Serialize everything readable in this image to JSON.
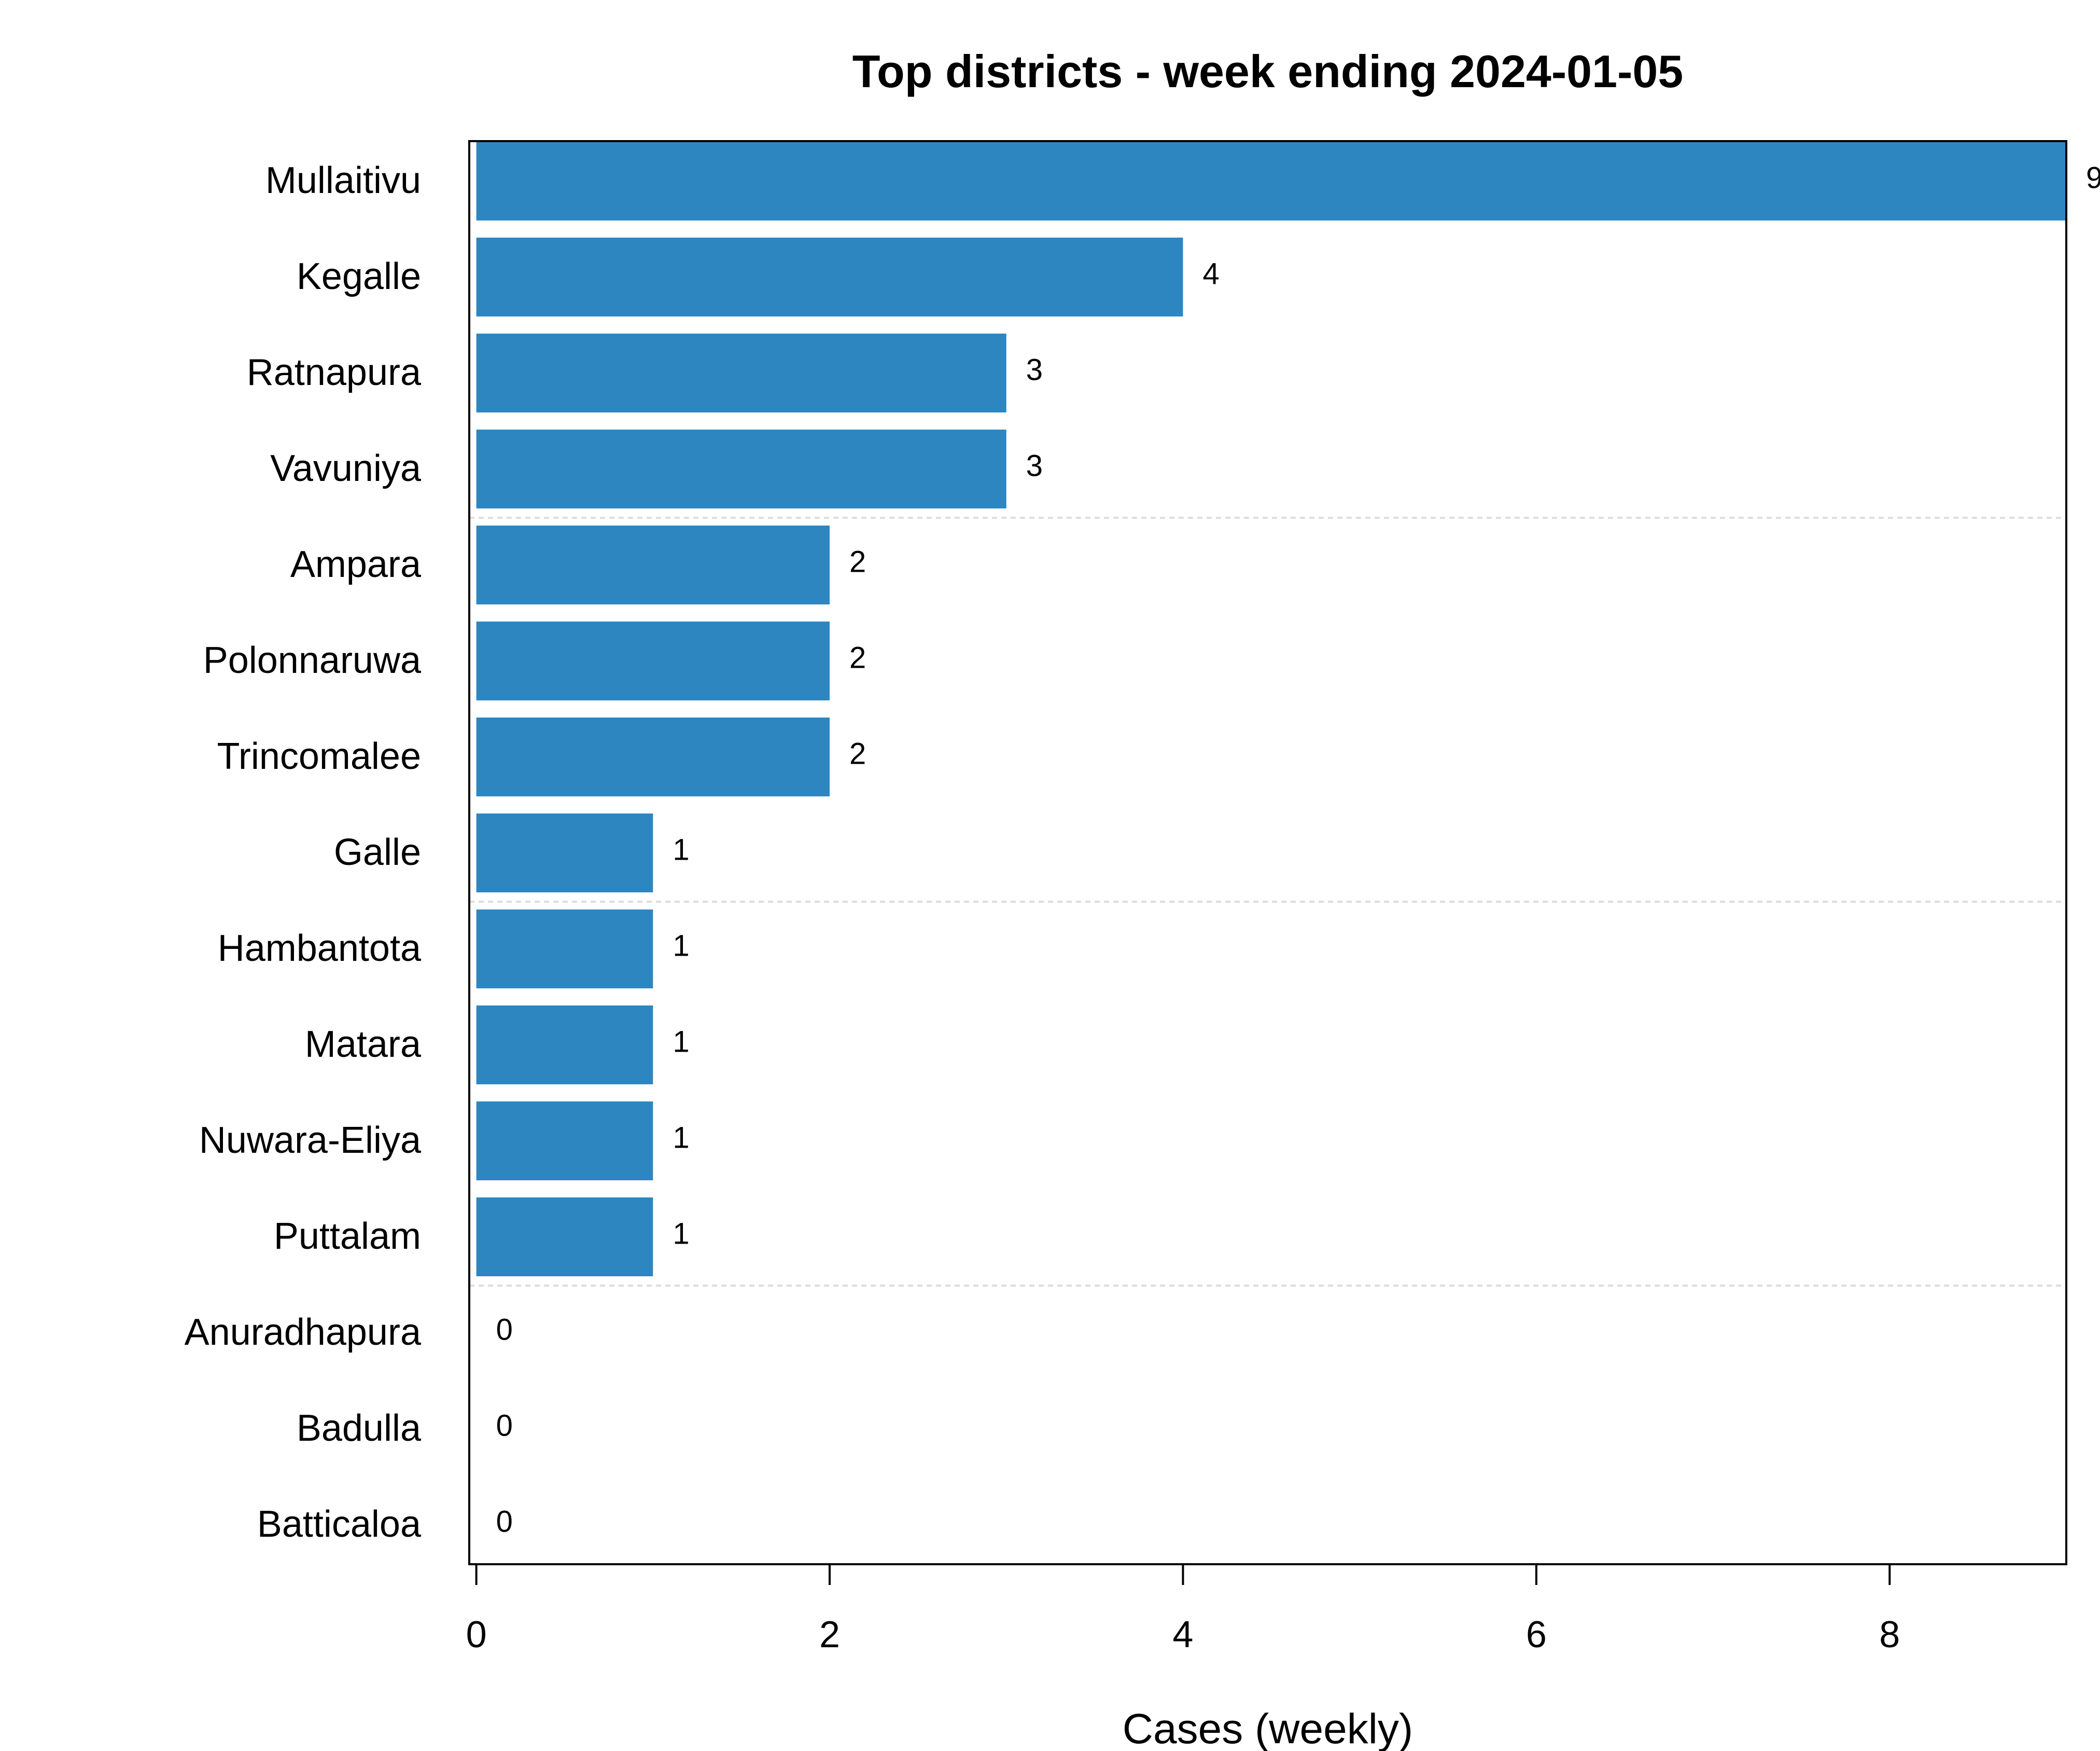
{
  "chart_data": {
    "type": "bar",
    "orientation": "horizontal",
    "title": "Top districts - week ending 2024-01-05",
    "xlabel": "Cases (weekly)",
    "ylabel": "",
    "categories": [
      "Mullaitivu",
      "Kegalle",
      "Ratnapura",
      "Vavuniya",
      "Ampara",
      "Polonnaruwa",
      "Trincomalee",
      "Galle",
      "Hambantota",
      "Matara",
      "Nuwara-Eliya",
      "Puttalam",
      "Anuradhapura",
      "Badulla",
      "Batticaloa"
    ],
    "values": [
      9,
      4,
      3,
      3,
      2,
      2,
      2,
      1,
      1,
      1,
      1,
      1,
      0,
      0,
      0
    ],
    "data_labels": [
      "9",
      "4",
      "3",
      "3",
      "2",
      "2",
      "2",
      "1",
      "1",
      "1",
      "1",
      "1",
      "0",
      "0",
      "0"
    ],
    "xticks": [
      0,
      2,
      4,
      6,
      8
    ],
    "xtick_labels": [
      "0",
      "2",
      "4",
      "6",
      "8"
    ],
    "xlim": [
      -0.04,
      9
    ],
    "grid": "horizontal dotted lines every 4 categories",
    "legend": "none",
    "colors": {
      "bar": "#2e86c1",
      "axis": "#000000",
      "grid": "#dddddd",
      "background": "#ffffff"
    }
  }
}
